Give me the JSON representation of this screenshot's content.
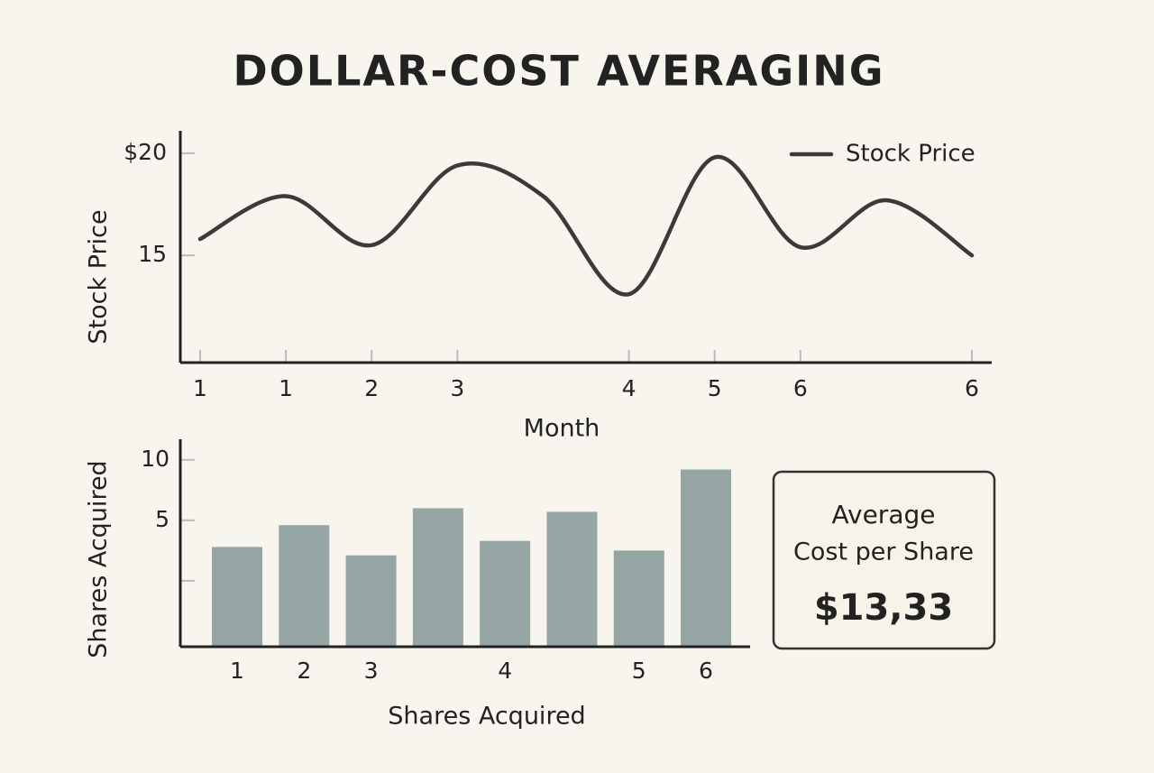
{
  "title": "DOLLAR-COST AVERAGING",
  "chart_data": [
    {
      "type": "line",
      "categories": [
        "1",
        "1",
        "2",
        "3",
        null,
        "4",
        "5",
        "6",
        null,
        "6"
      ],
      "series": [
        {
          "name": "Stock Price",
          "color": "#3a3a3a",
          "values": [
            15.8,
            17.9,
            15.5,
            19.4,
            17.9,
            13.1,
            19.8,
            15.4,
            17.7,
            15.0
          ]
        }
      ],
      "x_label": "Month",
      "y_label": "Stock Price",
      "ylim": [
        9.75,
        21.1
      ],
      "yticks": [
        {
          "value": 20,
          "label": "$20"
        },
        15
      ],
      "legend": "top-right"
    },
    {
      "type": "bar",
      "categories": [
        "1",
        "2",
        "3",
        null,
        "4",
        null,
        "5",
        "6"
      ],
      "values": [
        2.8,
        4.6,
        2.1,
        6.0,
        3.3,
        5.7,
        2.5,
        9.2
      ],
      "color": "#95a5a3",
      "x_label": "Shares Acquired",
      "y_label": "Shares Acquired",
      "ylim": [
        -5.45,
        11.7
      ],
      "yticks": [
        10,
        5
      ],
      "yminor_ticks": [
        0
      ]
    }
  ],
  "summary_box": {
    "line1": "Average",
    "line2": "Cost per Share",
    "value": "$13,33"
  }
}
